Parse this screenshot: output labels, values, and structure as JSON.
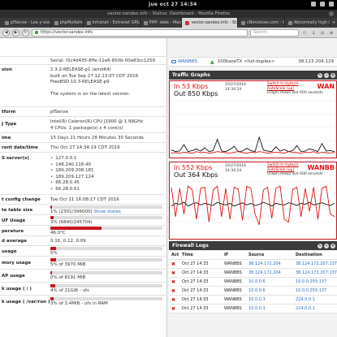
{
  "topbar": {
    "clock": "jue oct 27   14:34"
  },
  "window": {
    "title": "vector.sandex.infc - Status: Dashboard - Mozilla Firefox"
  },
  "tabs": [
    {
      "label": "pfSense - Lea y escrit...",
      "active": false
    },
    {
      "label": "phpMyAdmin",
      "active": false
    },
    {
      "label": "Intranet - Extranet GRUPO...",
      "active": false
    },
    {
      "label": "PHP: date - Manual",
      "active": false
    },
    {
      "label": "vector.sandex.infc - St...",
      "active": true
    },
    {
      "label": "cNinvoices.com - Co...",
      "active": false
    },
    {
      "label": "Abnormally high CP...",
      "active": false
    }
  ],
  "navbar": {
    "url": "https://vector.sandex.info",
    "search_placeholder": "Search"
  },
  "system": {
    "serial": "Serial: f2c4d435-8ffe-11e6-850b-00e83cc1259",
    "version_label": "sion",
    "version_lines": [
      "2.3.2-RELEASE-p1 (amd64)",
      "built on Tue Sep 27 12:13:07 CDT 2016",
      "FreeBSD 10.3-RELEASE-p9",
      "",
      "The system is on the latest version."
    ],
    "platform_label": "tform",
    "platform": "pfSense",
    "cpu_label": "J Type",
    "cpu_lines": [
      "Intel(R) Celeron(R) CPU J1900 @ 1.99GHz",
      "4 CPUs: 1 package(s) x 4 core(s)"
    ],
    "uptime_label": "ime",
    "uptime": "15 Days 21 Hours 28 Minutes 30 Seconds",
    "datetime_label": "rent date/time",
    "datetime": "Thu Oct 27 14:34:19 CDT 2016",
    "dns_label": "S server(s)",
    "dns": [
      "127.0.0.1",
      "148.240.118.40",
      "189.209.208.181",
      "189.209.127.124",
      "66.28.0.45",
      "66.28.0.61"
    ],
    "lastconfig_label": "t config change",
    "lastconfig": "Tue Oct 11 16:08:17 CDT 2016",
    "statetable_label": "te table size",
    "statetable_pct": 1,
    "statetable_text": "1% (2301/396000)",
    "statetable_link": "Show states",
    "mbuf_label": "UF Usage",
    "mbuf_pct": 3,
    "mbuf_text": "3% (6840/245704)",
    "temp_label": "perature",
    "temp_pct": 46,
    "temp_text": "46.0°C",
    "load_label": "d average",
    "load": "0.16, 0.12, 0.09",
    "cpuuse_label": "usage",
    "cpuuse_pct": 5,
    "cpuuse_text": "5%",
    "mem_label": "mory usage",
    "mem_pct": 5,
    "mem_text": "5% of 3970 MiB",
    "swap_label": "AP usage",
    "swap_pct": 0,
    "swap_text": "0% of 8191 MiB",
    "disk1_label": "k usage ( / )",
    "disk1_pct": 4,
    "disk1_text": "4% of 21GiB - ufs",
    "disk2_label": "k usage ( /var/run )",
    "disk2_pct": 3,
    "disk2_text": "3% of 3.4MiB - ufs in RAM"
  },
  "interface": {
    "name": "WANBBS",
    "media": "100baseTX <full-duplex>",
    "ip": "38.123.204.129"
  },
  "traffic": {
    "header": "Traffic Graphs",
    "graphs": [
      {
        "in": "In    53 Kbps",
        "out": "Out 850 Kbps",
        "date": "10/27/2016",
        "time": "14:34:24",
        "switch1": "Switch to bytes/s",
        "switch2": "AutoScale (up)",
        "caption": "Graph shows last 600 seconds",
        "name": "WAN",
        "in_series": [
          0.02,
          0.03,
          0.02,
          0.04,
          0.03,
          0.02,
          0.05,
          0.03,
          0.04,
          0.02,
          0.03,
          0.05,
          0.04,
          0.03,
          0.02,
          0.04,
          0.05,
          0.03,
          0.02,
          0.04,
          0.03,
          0.05,
          0.04,
          0.02,
          0.03,
          0.04,
          0.03,
          0.02,
          0.05,
          0.04,
          0.03,
          0.02,
          0.04,
          0.03,
          0.05,
          0.02,
          0.04,
          0.03,
          0.02,
          0.04
        ],
        "out_series": [
          0.08,
          0.05,
          0.06,
          0.18,
          0.05,
          0.07,
          0.1,
          0.06,
          0.12,
          0.05,
          0.07,
          0.28,
          0.06,
          0.05,
          0.09,
          0.15,
          0.05,
          0.06,
          0.11,
          0.07,
          0.05,
          0.32,
          0.08,
          0.06,
          0.05,
          0.14,
          0.06,
          0.09,
          0.05,
          0.07,
          0.16,
          0.05,
          0.06,
          0.1,
          0.08,
          0.05,
          0.2,
          0.06,
          0.07,
          0.05
        ]
      },
      {
        "in": "In    552 Kbps",
        "out": "Out 364 Kbps",
        "date": "10/27/2016",
        "time": "14:34:24",
        "switch1": "Switch to bytes/s",
        "switch2": "AutoScale (up)",
        "caption": "Graph shows last 600 seconds",
        "name": "WANBB",
        "in_series": [
          0.9,
          0.35,
          0.88,
          0.4,
          0.92,
          0.85,
          0.3,
          0.88,
          0.9,
          0.25,
          0.85,
          0.92,
          0.35,
          0.88,
          0.3,
          0.9,
          0.86,
          0.28,
          0.92,
          0.88,
          0.4,
          0.2,
          0.85,
          0.9,
          0.32,
          0.88,
          0.92,
          0.3,
          0.25,
          0.86,
          0.9,
          0.35,
          0.88,
          0.45,
          0.9,
          0.3,
          0.88,
          0.92,
          0.4,
          0.35
        ],
        "out_series": [
          0.55,
          0.6,
          0.58,
          0.62,
          0.55,
          0.59,
          0.61,
          0.57,
          0.6,
          0.58,
          0.56,
          0.62,
          0.59,
          0.57,
          0.6,
          0.55,
          0.58,
          0.61,
          0.57,
          0.6,
          0.56,
          0.58,
          0.62,
          0.59,
          0.55,
          0.6,
          0.58,
          0.57,
          0.61,
          0.59,
          0.56,
          0.6,
          0.58,
          0.62,
          0.57,
          0.59,
          0.61,
          0.58,
          0.56,
          0.6
        ]
      }
    ]
  },
  "firewall": {
    "header": "Firewall Logs",
    "columns": [
      "Act",
      "Time",
      "IF",
      "Source",
      "Destination"
    ],
    "rows": [
      {
        "time": "Oct 27 14:33",
        "if": "WANBBS",
        "src": "38.124.172.204",
        "dst": "38.124.172.207:137"
      },
      {
        "time": "Oct 27 14:33",
        "if": "WANBBS",
        "src": "38.124.172.204",
        "dst": "38.124.172.207:137"
      },
      {
        "time": "Oct 27 14:33",
        "if": "WANBBS",
        "src": "10.0.0.6",
        "dst": "10.0.0.255:137"
      },
      {
        "time": "Oct 27 14:33",
        "if": "WANBBS",
        "src": "10.0.0.6",
        "dst": "10.0.0.255:137"
      },
      {
        "time": "Oct 27 14:33",
        "if": "WANBBS",
        "src": "10.0.0.3",
        "dst": "224.0.0.1"
      },
      {
        "time": "Oct 27 14:33",
        "if": "WANBBS",
        "src": "10.0.0.3",
        "dst": "224.0.0.1"
      }
    ]
  },
  "colors": {
    "accent": "#c4161c",
    "link": "#2a6ebb",
    "header_bg": "#3b3b3b",
    "in_series": "#e01010",
    "out_series": "#111111"
  }
}
